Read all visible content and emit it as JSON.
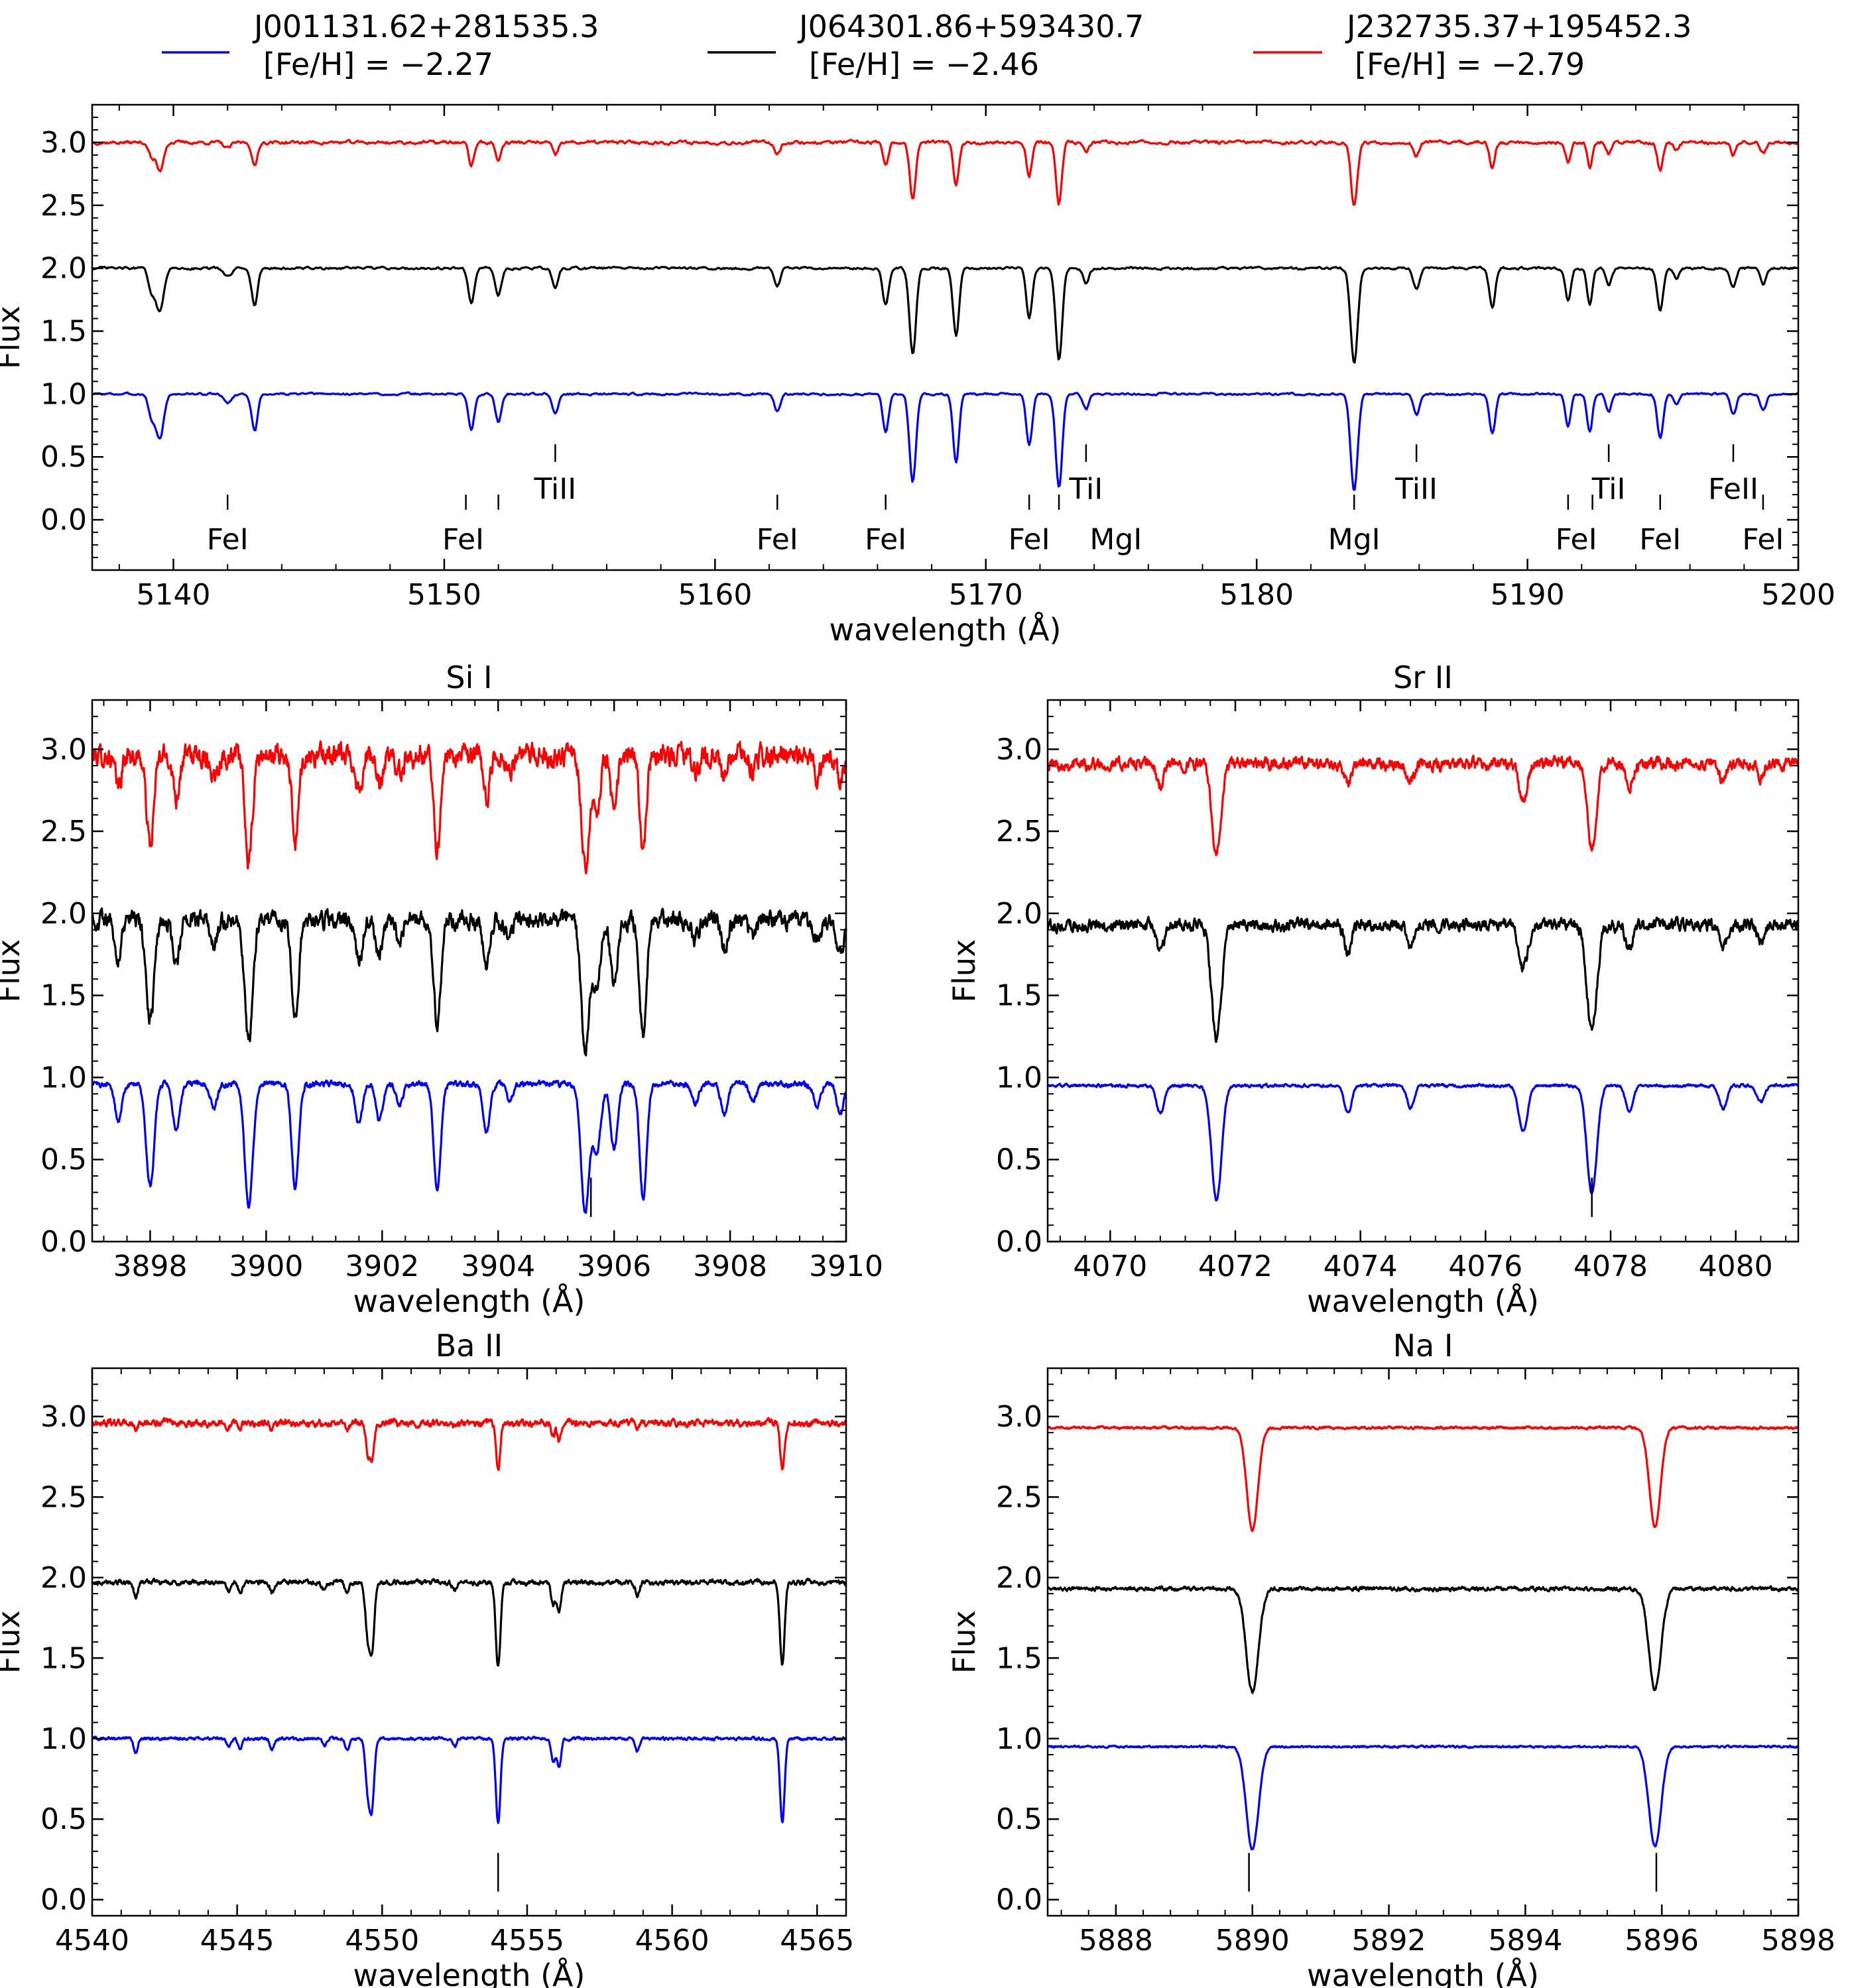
{
  "legend": [
    {
      "name": "J001131.62+281535.3",
      "feh": "[Fe/H] = −2.27",
      "color": "#0000ff"
    },
    {
      "name": "J064301.86+593430.7",
      "feh": "[Fe/H] = −2.46",
      "color": "#000000"
    },
    {
      "name": "J232735.37+195452.3",
      "feh": "[Fe/H] = −2.79",
      "color": "#ff0000"
    }
  ],
  "chart_data": [
    {
      "type": "line",
      "title": "",
      "xlabel": "wavelength (Å)",
      "ylabel": "Flux",
      "xlim": [
        5137,
        5200
      ],
      "ylim": [
        -0.4,
        3.3
      ],
      "xticks": [
        5140,
        5150,
        5160,
        5170,
        5180,
        5190,
        5200
      ],
      "yticks": [
        0.0,
        0.5,
        1.0,
        1.5,
        2.0,
        2.5,
        3.0
      ],
      "continuum": [
        1.0,
        2.0,
        3.0
      ],
      "lines": [
        {
          "x": 5139.5,
          "b": 0.35,
          "w": 0.14
        },
        {
          "x": 5139.2,
          "b": 0.18,
          "w": 0.12
        },
        {
          "x": 5142.0,
          "b": 0.07,
          "w": 0.15
        },
        {
          "x": 5143.0,
          "b": 0.3,
          "w": 0.11
        },
        {
          "x": 5151.0,
          "b": 0.28,
          "w": 0.11
        },
        {
          "x": 5152.0,
          "b": 0.22,
          "w": 0.11
        },
        {
          "x": 5154.1,
          "b": 0.16,
          "w": 0.11
        },
        {
          "x": 5162.3,
          "b": 0.14,
          "w": 0.11
        },
        {
          "x": 5166.3,
          "b": 0.3,
          "w": 0.11
        },
        {
          "x": 5167.3,
          "b": 0.7,
          "w": 0.12
        },
        {
          "x": 5168.9,
          "b": 0.55,
          "w": 0.11
        },
        {
          "x": 5171.6,
          "b": 0.4,
          "w": 0.11
        },
        {
          "x": 5172.7,
          "b": 0.75,
          "w": 0.12
        },
        {
          "x": 5173.7,
          "b": 0.12,
          "w": 0.11
        },
        {
          "x": 5183.6,
          "b": 0.77,
          "w": 0.13
        },
        {
          "x": 5185.9,
          "b": 0.17,
          "w": 0.11
        },
        {
          "x": 5188.7,
          "b": 0.32,
          "w": 0.11
        },
        {
          "x": 5191.5,
          "b": 0.26,
          "w": 0.1
        },
        {
          "x": 5192.3,
          "b": 0.3,
          "w": 0.1
        },
        {
          "x": 5193.0,
          "b": 0.14,
          "w": 0.1
        },
        {
          "x": 5194.9,
          "b": 0.35,
          "w": 0.11
        },
        {
          "x": 5195.5,
          "b": 0.08,
          "w": 0.1
        },
        {
          "x": 5197.6,
          "b": 0.16,
          "w": 0.11
        },
        {
          "x": 5198.7,
          "b": 0.13,
          "w": 0.11
        }
      ],
      "depth_scale": [
        1.0,
        0.98,
        0.65
      ],
      "noise": [
        0.006,
        0.007,
        0.01
      ],
      "markers": [
        {
          "label": "FeI",
          "x": 5142.0,
          "row": "low",
          "tick_xs": [
            5142.0
          ]
        },
        {
          "label": "FeI",
          "x": 5150.7,
          "row": "low",
          "tick_xs": [
            5150.8,
            5152.0
          ]
        },
        {
          "label": "FeI",
          "x": 5162.3,
          "row": "low",
          "tick_xs": [
            5162.3
          ]
        },
        {
          "label": "FeI",
          "x": 5166.3,
          "row": "low",
          "tick_xs": [
            5166.3
          ]
        },
        {
          "label": "FeI",
          "x": 5171.6,
          "row": "low",
          "tick_xs": [
            5171.6
          ]
        },
        {
          "label": "MgI",
          "x": 5174.8,
          "row": "low",
          "tick_xs": [
            5172.7
          ]
        },
        {
          "label": "MgI",
          "x": 5183.6,
          "row": "low",
          "tick_xs": [
            5183.6
          ]
        },
        {
          "label": "FeI",
          "x": 5191.8,
          "row": "low",
          "tick_xs": [
            5191.5,
            5192.4
          ]
        },
        {
          "label": "FeI",
          "x": 5194.9,
          "row": "low",
          "tick_xs": [
            5194.9
          ]
        },
        {
          "label": "FeI",
          "x": 5198.7,
          "row": "low",
          "tick_xs": [
            5198.7
          ]
        },
        {
          "label": "TiII",
          "x": 5154.1,
          "row": "high",
          "tick_xs": [
            5154.1
          ]
        },
        {
          "label": "TiI",
          "x": 5173.7,
          "row": "high",
          "tick_xs": [
            5173.7
          ]
        },
        {
          "label": "TiII",
          "x": 5185.9,
          "row": "high",
          "tick_xs": [
            5185.9
          ]
        },
        {
          "label": "TiI",
          "x": 5193.0,
          "row": "high",
          "tick_xs": [
            5193.0
          ]
        },
        {
          "label": "FeII",
          "x": 5197.6,
          "row": "high",
          "tick_xs": [
            5197.6
          ]
        }
      ]
    },
    {
      "type": "line",
      "title": "Si I",
      "xlabel": "wavelength (Å)",
      "ylabel": "Flux",
      "xlim": [
        3897,
        3910
      ],
      "ylim": [
        0.0,
        3.3
      ],
      "xticks": [
        3898,
        3900,
        3902,
        3904,
        3906,
        3908,
        3910
      ],
      "yticks": [
        0.0,
        0.5,
        1.0,
        1.5,
        2.0,
        2.5,
        3.0
      ],
      "continuum": [
        0.96,
        1.96,
        2.96
      ],
      "lines": [
        {
          "x": 3897.45,
          "b": 0.22,
          "w": 0.06
        },
        {
          "x": 3898.0,
          "b": 0.62,
          "w": 0.07
        },
        {
          "x": 3898.45,
          "b": 0.28,
          "w": 0.06
        },
        {
          "x": 3899.1,
          "b": 0.14,
          "w": 0.06
        },
        {
          "x": 3899.7,
          "b": 0.74,
          "w": 0.07
        },
        {
          "x": 3900.5,
          "b": 0.64,
          "w": 0.06
        },
        {
          "x": 3901.6,
          "b": 0.24,
          "w": 0.06
        },
        {
          "x": 3901.95,
          "b": 0.22,
          "w": 0.06
        },
        {
          "x": 3902.3,
          "b": 0.12,
          "w": 0.06
        },
        {
          "x": 3902.95,
          "b": 0.66,
          "w": 0.06
        },
        {
          "x": 3903.8,
          "b": 0.3,
          "w": 0.06
        },
        {
          "x": 3904.2,
          "b": 0.1,
          "w": 0.06
        },
        {
          "x": 3905.5,
          "b": 0.78,
          "w": 0.07
        },
        {
          "x": 3905.7,
          "b": 0.4,
          "w": 0.07
        },
        {
          "x": 3906.0,
          "b": 0.4,
          "w": 0.06
        },
        {
          "x": 3906.5,
          "b": 0.7,
          "w": 0.06
        },
        {
          "x": 3907.4,
          "b": 0.12,
          "w": 0.06
        },
        {
          "x": 3907.9,
          "b": 0.18,
          "w": 0.06
        },
        {
          "x": 3908.4,
          "b": 0.1,
          "w": 0.06
        },
        {
          "x": 3909.5,
          "b": 0.14,
          "w": 0.06
        },
        {
          "x": 3909.9,
          "b": 0.18,
          "w": 0.06
        }
      ],
      "depth_scale": [
        1.0,
        1.0,
        0.88
      ],
      "noise": [
        0.012,
        0.035,
        0.045
      ],
      "markers": [
        {
          "label": "",
          "x": 3905.6,
          "row": "bottom",
          "tick_xs": [
            3905.6
          ]
        }
      ]
    },
    {
      "type": "line",
      "title": "Sr II",
      "xlabel": "wavelength (Å)",
      "ylabel": "Flux",
      "xlim": [
        4069,
        4081
      ],
      "ylim": [
        0.0,
        3.3
      ],
      "xticks": [
        4070,
        4072,
        4074,
        4076,
        4078,
        4080
      ],
      "yticks": [
        0.0,
        0.5,
        1.0,
        1.5,
        2.0,
        2.5,
        3.0
      ],
      "continuum": [
        0.95,
        1.93,
        2.91
      ],
      "lines": [
        {
          "x": 4070.8,
          "b": 0.17,
          "w": 0.06
        },
        {
          "x": 4071.7,
          "b": 0.7,
          "w": 0.08
        },
        {
          "x": 4073.8,
          "b": 0.16,
          "w": 0.06
        },
        {
          "x": 4074.8,
          "b": 0.13,
          "w": 0.06
        },
        {
          "x": 4076.6,
          "b": 0.28,
          "w": 0.07
        },
        {
          "x": 4077.7,
          "b": 0.66,
          "w": 0.08
        },
        {
          "x": 4078.3,
          "b": 0.16,
          "w": 0.06
        },
        {
          "x": 4079.8,
          "b": 0.14,
          "w": 0.06
        },
        {
          "x": 4080.4,
          "b": 0.1,
          "w": 0.06
        }
      ],
      "depth_scale": [
        1.0,
        1.0,
        0.8
      ],
      "noise": [
        0.006,
        0.025,
        0.025
      ],
      "markers": [
        {
          "label": "",
          "x": 4077.7,
          "row": "bottom",
          "tick_xs": [
            4077.7
          ]
        }
      ]
    },
    {
      "type": "line",
      "title": "Ba II",
      "xlabel": "wavelength (Å)",
      "ylabel": "Flux",
      "xlim": [
        4540,
        4566
      ],
      "ylim": [
        -0.1,
        3.3
      ],
      "xticks": [
        4540,
        4545,
        4550,
        4555,
        4560,
        4565
      ],
      "yticks": [
        0.0,
        0.5,
        1.0,
        1.5,
        2.0,
        2.5,
        3.0
      ],
      "continuum": [
        1.0,
        1.97,
        2.96
      ],
      "lines": [
        {
          "x": 4541.5,
          "b": 0.09,
          "w": 0.07
        },
        {
          "x": 4544.7,
          "b": 0.05,
          "w": 0.07
        },
        {
          "x": 4545.1,
          "b": 0.06,
          "w": 0.07
        },
        {
          "x": 4546.2,
          "b": 0.07,
          "w": 0.07
        },
        {
          "x": 4548.0,
          "b": 0.05,
          "w": 0.07
        },
        {
          "x": 4548.8,
          "b": 0.08,
          "w": 0.07
        },
        {
          "x": 4549.5,
          "b": 0.3,
          "w": 0.08
        },
        {
          "x": 4549.65,
          "b": 0.4,
          "w": 0.08
        },
        {
          "x": 4552.5,
          "b": 0.05,
          "w": 0.07
        },
        {
          "x": 4554.0,
          "b": 0.52,
          "w": 0.08
        },
        {
          "x": 4555.9,
          "b": 0.15,
          "w": 0.07
        },
        {
          "x": 4556.1,
          "b": 0.18,
          "w": 0.07
        },
        {
          "x": 4558.8,
          "b": 0.08,
          "w": 0.07
        },
        {
          "x": 4563.8,
          "b": 0.52,
          "w": 0.08
        }
      ],
      "depth_scale": [
        1.0,
        1.0,
        0.55
      ],
      "noise": [
        0.006,
        0.01,
        0.014
      ],
      "markers": [
        {
          "label": "",
          "x": 4554.0,
          "row": "bottom",
          "tick_xs": [
            4554.0
          ]
        }
      ]
    },
    {
      "type": "line",
      "title": "Na I",
      "xlabel": "wavelength (Å)",
      "ylabel": "Flux",
      "xlim": [
        5887,
        5898
      ],
      "ylim": [
        -0.1,
        3.3
      ],
      "xticks": [
        5888,
        5890,
        5892,
        5894,
        5896,
        5898
      ],
      "yticks": [
        0.0,
        0.5,
        1.0,
        1.5,
        2.0,
        2.5,
        3.0
      ],
      "continuum": [
        0.95,
        1.93,
        2.93
      ],
      "lines": [
        {
          "x": 5890.0,
          "b": 0.64,
          "w": 0.09
        },
        {
          "x": 5895.9,
          "b": 0.62,
          "w": 0.09
        }
      ],
      "depth_scale": [
        1.0,
        1.0,
        1.0
      ],
      "noise": [
        0.004,
        0.008,
        0.005
      ],
      "markers": [
        {
          "label": "",
          "x": 5889.95,
          "row": "bottom",
          "tick_xs": [
            5889.95
          ]
        },
        {
          "label": "",
          "x": 5895.92,
          "row": "bottom",
          "tick_xs": [
            5895.92
          ]
        }
      ]
    }
  ]
}
